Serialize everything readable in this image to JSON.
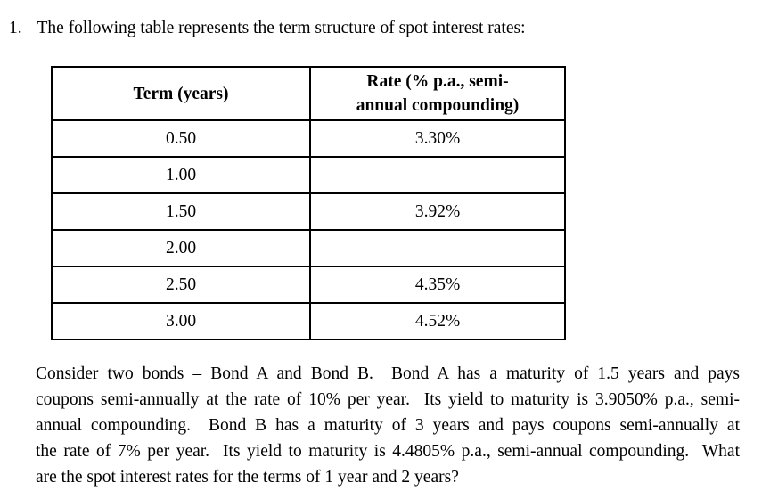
{
  "question": {
    "number": "1.",
    "intro": "The following table represents the term structure of spot interest rates:"
  },
  "table": {
    "headers": {
      "term": "Term (years)",
      "rate_line1": "Rate (% p.a., semi-",
      "rate_line2": "annual compounding)"
    },
    "rows": [
      {
        "term": "0.50",
        "rate": "3.30%"
      },
      {
        "term": "1.00",
        "rate": ""
      },
      {
        "term": "1.50",
        "rate": "3.92%"
      },
      {
        "term": "2.00",
        "rate": ""
      },
      {
        "term": "2.50",
        "rate": "4.35%"
      },
      {
        "term": "3.00",
        "rate": "4.52%"
      }
    ]
  },
  "paragraph": {
    "lines": [
      "Consider two bonds – Bond A and Bond B.  Bond A has a maturity of 1.5 years and pays",
      "coupons semi-annually at the rate of 10% per year.  Its yield to maturity is 3.9050% p.a., semi-",
      "annual compounding.  Bond B has a maturity of 3 years and pays coupons semi-annually at",
      "the rate of 7% per year.  Its yield to maturity is 4.4805% p.a., semi-annual compounding.  What",
      "are the spot interest rates for the terms of 1 year and 2 years?"
    ]
  },
  "colors": {
    "text": "#000000",
    "background": "#ffffff",
    "table_border": "#000000"
  }
}
